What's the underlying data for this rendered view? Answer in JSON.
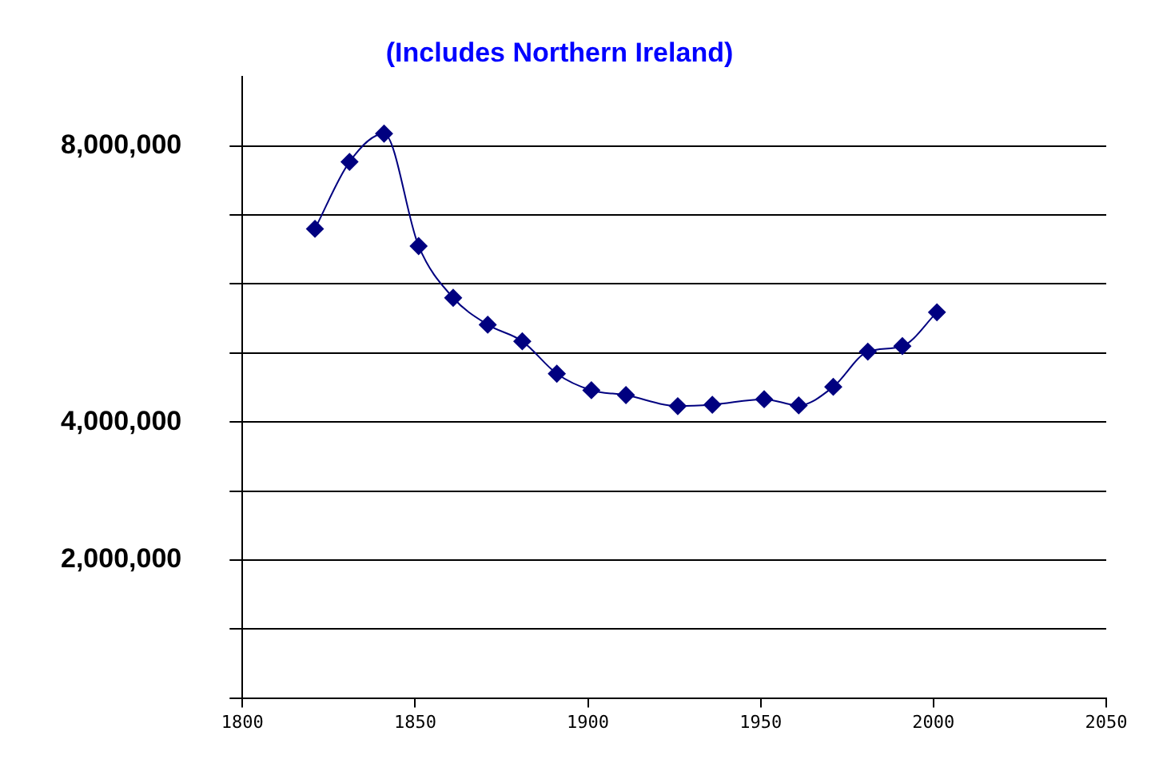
{
  "chart_data": {
    "type": "line",
    "title": "(Includes Northern Ireland)",
    "x": [
      1821,
      1831,
      1841,
      1851,
      1861,
      1871,
      1881,
      1891,
      1901,
      1911,
      1926,
      1936,
      1951,
      1961,
      1971,
      1981,
      1991,
      2001
    ],
    "series": [
      {
        "color": "#000080",
        "values": [
          6800000,
          7770000,
          8180000,
          6550000,
          5800000,
          5410000,
          5170000,
          4700000,
          4460000,
          4390000,
          4230000,
          4250000,
          4330000,
          4240000,
          4510000,
          5020000,
          5100000,
          5590000
        ]
      }
    ],
    "xlim": [
      1800,
      2050
    ],
    "xticks": [
      1800,
      1850,
      1900,
      1950,
      2000,
      2050
    ],
    "ylim": [
      0,
      9000000
    ],
    "yticks": [
      {
        "value": 0,
        "label": null
      },
      {
        "value": 1000000,
        "label": null
      },
      {
        "value": 2000000,
        "label": "2,000,000"
      },
      {
        "value": 3000000,
        "label": null
      },
      {
        "value": 4000000,
        "label": "4,000,000"
      },
      {
        "value": 5000000,
        "label": null
      },
      {
        "value": 6000000,
        "label": null
      },
      {
        "value": 7000000,
        "label": null
      },
      {
        "value": 8000000,
        "label": "8,000,000"
      }
    ],
    "grid": "y",
    "marker": "diamond",
    "line_style": "solid",
    "legend": false
  }
}
